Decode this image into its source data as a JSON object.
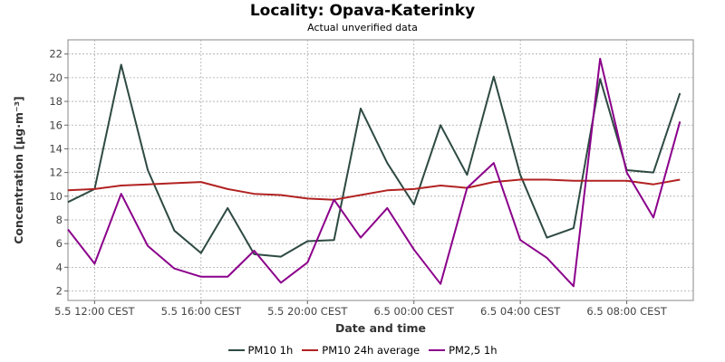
{
  "chart_data": {
    "type": "line",
    "title": "Locality: Opava-Katerinky",
    "subtitle": "Actual unverified data",
    "xlabel": "Date and time",
    "ylabel": "Concentration [µg·m⁻³]",
    "ylim": [
      1.2,
      23.2
    ],
    "yticks": [
      2,
      4,
      6,
      8,
      10,
      12,
      14,
      16,
      18,
      20,
      22
    ],
    "xlim": [
      0,
      23.5
    ],
    "xticks": [
      {
        "x": 1,
        "label": "5.5 12:00 CEST"
      },
      {
        "x": 5,
        "label": "5.5 16:00 CEST"
      },
      {
        "x": 9,
        "label": "5.5 20:00 CEST"
      },
      {
        "x": 13,
        "label": "6.5 00:00 CEST"
      },
      {
        "x": 17,
        "label": "6.5 04:00 CEST"
      },
      {
        "x": 21,
        "label": "6.5 08:00 CEST"
      }
    ],
    "grid": true,
    "legend_position": "bottom",
    "x": [
      0,
      1,
      2,
      3,
      4,
      5,
      6,
      7,
      8,
      9,
      10,
      11,
      12,
      13,
      14,
      15,
      16,
      17,
      18,
      19,
      20,
      21,
      22,
      23
    ],
    "series": [
      {
        "name": "PM10 1h",
        "color": "#2e4a43",
        "values": [
          9.5,
          10.6,
          21.1,
          12.2,
          7.1,
          5.2,
          9.0,
          5.1,
          4.9,
          6.2,
          6.3,
          17.4,
          12.8,
          9.3,
          16.0,
          11.8,
          20.1,
          11.8,
          6.5,
          7.3,
          19.9,
          12.2,
          12.0,
          18.7
        ]
      },
      {
        "name": "PM10 24h average",
        "color": "#b22222",
        "values": [
          10.5,
          10.6,
          10.9,
          11.0,
          11.1,
          11.2,
          10.6,
          10.2,
          10.1,
          9.8,
          9.7,
          10.1,
          10.5,
          10.6,
          10.9,
          10.7,
          11.2,
          11.4,
          11.4,
          11.3,
          11.3,
          11.3,
          11.0,
          11.4
        ]
      },
      {
        "name": "PM2,5 1h",
        "color": "#8b008b",
        "values": [
          7.2,
          4.3,
          10.2,
          5.8,
          3.9,
          3.2,
          3.2,
          5.4,
          2.7,
          4.4,
          9.7,
          6.5,
          9.0,
          5.5,
          2.6,
          10.7,
          12.8,
          6.3,
          4.8,
          2.4,
          21.6,
          12.0,
          8.2,
          16.3
        ]
      }
    ]
  }
}
